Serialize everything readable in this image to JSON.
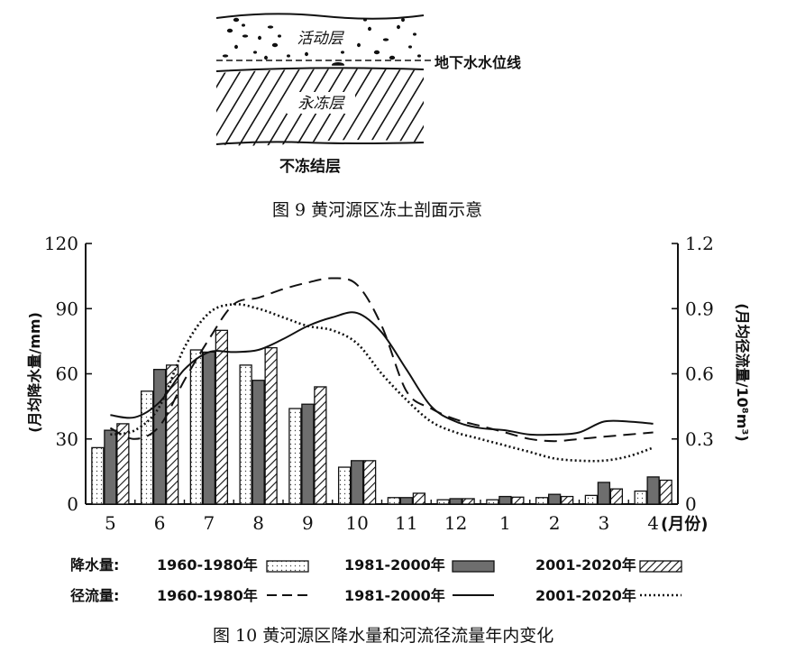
{
  "figure9": {
    "caption": "图 9  黄河源区冻土剖面示意",
    "labels": {
      "active_layer": "活动层",
      "water_table": "地下水水位线",
      "permafrost": "永冻层",
      "unfrozen": "不冻结层"
    }
  },
  "figure10": {
    "caption": "图 10  黄河源区降水量和河流径流量年内变化"
  },
  "chart_data": {
    "type": "bar",
    "categories": [
      "5",
      "6",
      "7",
      "8",
      "9",
      "10",
      "11",
      "12",
      "1",
      "2",
      "3",
      "4"
    ],
    "x_unit_label": "(月份)",
    "y_left": {
      "label": "(月均降水量/mm)",
      "lim": [
        0,
        120
      ],
      "ticks": [
        "0",
        "30",
        "60",
        "90",
        "120"
      ]
    },
    "y_right": {
      "label": "(月均径流量/10⁸m³)",
      "lim": [
        0,
        1.2
      ],
      "ticks": [
        "0",
        "0.3",
        "0.6",
        "0.9",
        "1.2"
      ]
    },
    "legend_row_labels": {
      "precip": "降水量:",
      "runoff": "径流量:"
    },
    "bar_series": [
      {
        "name": "1960-1980年",
        "style": "dotted",
        "values": [
          26,
          52,
          71,
          64,
          44,
          17,
          3,
          2,
          2,
          3,
          4,
          6
        ]
      },
      {
        "name": "1981-2000年",
        "style": "gray",
        "values": [
          34,
          62,
          70,
          57,
          46,
          20,
          3,
          2.5,
          3.5,
          4.5,
          10,
          12.5
        ]
      },
      {
        "name": "2001-2020年",
        "style": "hatched",
        "values": [
          37,
          64,
          80,
          72,
          54,
          20,
          5,
          2.5,
          3.2,
          3.5,
          7,
          11
        ]
      }
    ],
    "line_series": [
      {
        "name": "1960-1980年",
        "style": "dashed",
        "x": [
          0,
          0.5,
          1,
          1.5,
          2,
          2.5,
          3,
          3.5,
          4,
          4.5,
          5,
          5.5,
          6,
          6.5,
          7,
          7.5,
          8,
          8.5,
          9,
          9.5,
          10,
          10.5,
          11
        ],
        "y": [
          0.35,
          0.3,
          0.36,
          0.57,
          0.76,
          0.92,
          0.95,
          0.99,
          1.02,
          1.04,
          1.01,
          0.82,
          0.52,
          0.44,
          0.39,
          0.36,
          0.33,
          0.3,
          0.29,
          0.3,
          0.31,
          0.32,
          0.33
        ]
      },
      {
        "name": "1981-2000年",
        "style": "solid",
        "x": [
          0,
          0.5,
          1,
          1.5,
          2,
          2.5,
          3,
          3.5,
          4,
          4.5,
          5,
          5.5,
          6,
          6.5,
          7,
          7.5,
          8,
          8.5,
          9,
          9.5,
          10,
          10.5,
          11
        ],
        "y": [
          0.41,
          0.4,
          0.47,
          0.62,
          0.7,
          0.7,
          0.71,
          0.76,
          0.82,
          0.86,
          0.88,
          0.79,
          0.62,
          0.45,
          0.38,
          0.35,
          0.34,
          0.32,
          0.32,
          0.33,
          0.38,
          0.38,
          0.37
        ]
      },
      {
        "name": "2001-2020年",
        "style": "dotted",
        "x": [
          0,
          0.5,
          1,
          1.5,
          2,
          2.5,
          3,
          3.5,
          4,
          4.5,
          5,
          5.5,
          6,
          6.5,
          7,
          7.5,
          8,
          8.5,
          9,
          9.5,
          10,
          10.5,
          11
        ],
        "y": [
          0.32,
          0.34,
          0.45,
          0.72,
          0.88,
          0.92,
          0.9,
          0.86,
          0.82,
          0.8,
          0.74,
          0.6,
          0.48,
          0.38,
          0.33,
          0.3,
          0.27,
          0.24,
          0.21,
          0.2,
          0.2,
          0.22,
          0.26
        ]
      }
    ]
  }
}
